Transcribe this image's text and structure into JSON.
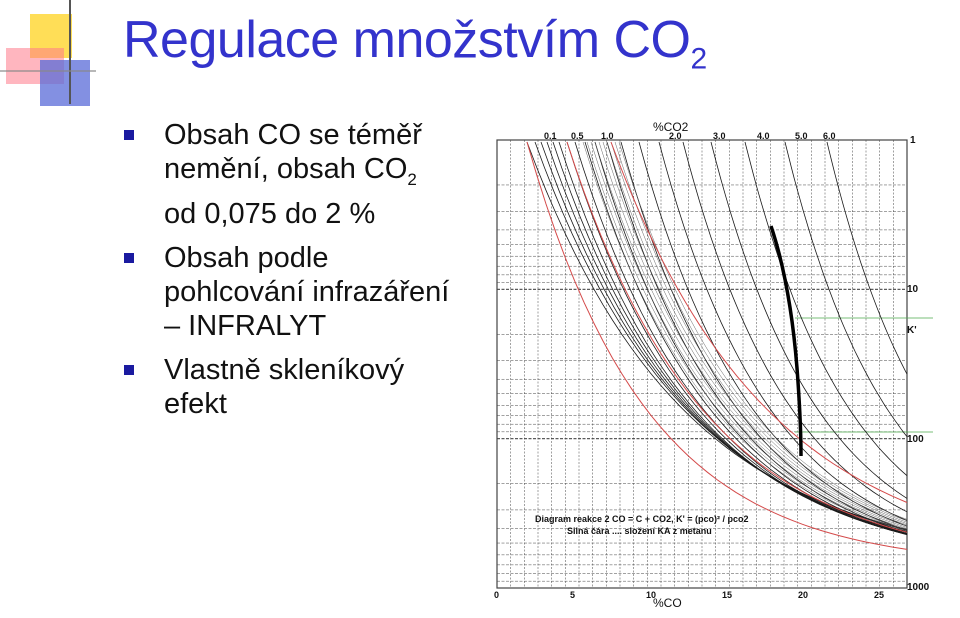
{
  "slide": {
    "title_main": "Regulace množstvím CO",
    "title_sub": "2",
    "bullets": [
      {
        "pre": "Obsah CO se téměř nemění, obsah CO",
        "sub": "2",
        "post": " od 0,075 do 2 %"
      },
      {
        "pre": "Obsah podle pohlcování infrazáření – INFRALYT",
        "sub": "",
        "post": ""
      },
      {
        "pre": "Vlastně skleníkový efekt",
        "sub": "",
        "post": ""
      }
    ]
  },
  "chart_data": {
    "type": "line",
    "top_axis_label": "%CO2",
    "top_ticks": [
      "0.1",
      "0.5",
      "1.0",
      "2.0",
      "3.0",
      "4.0",
      "5.0",
      "6.0"
    ],
    "bottom_axis_label": "%CO",
    "bottom_ticks": [
      "0",
      "5",
      "10",
      "15",
      "20",
      "25"
    ],
    "right_ticks": [
      "1",
      "10",
      "K'",
      "100",
      "1000"
    ],
    "caption_line1": "Diagram reakce 2 CO = C + CO2, K' = (pco)² / pco2",
    "caption_line2": "Silná čára .... složení KA z metanu",
    "colors": {
      "grid": "#444444",
      "curve": "#1a1a1a",
      "red": "#d44a4a",
      "green": "#4caa4c"
    }
  }
}
